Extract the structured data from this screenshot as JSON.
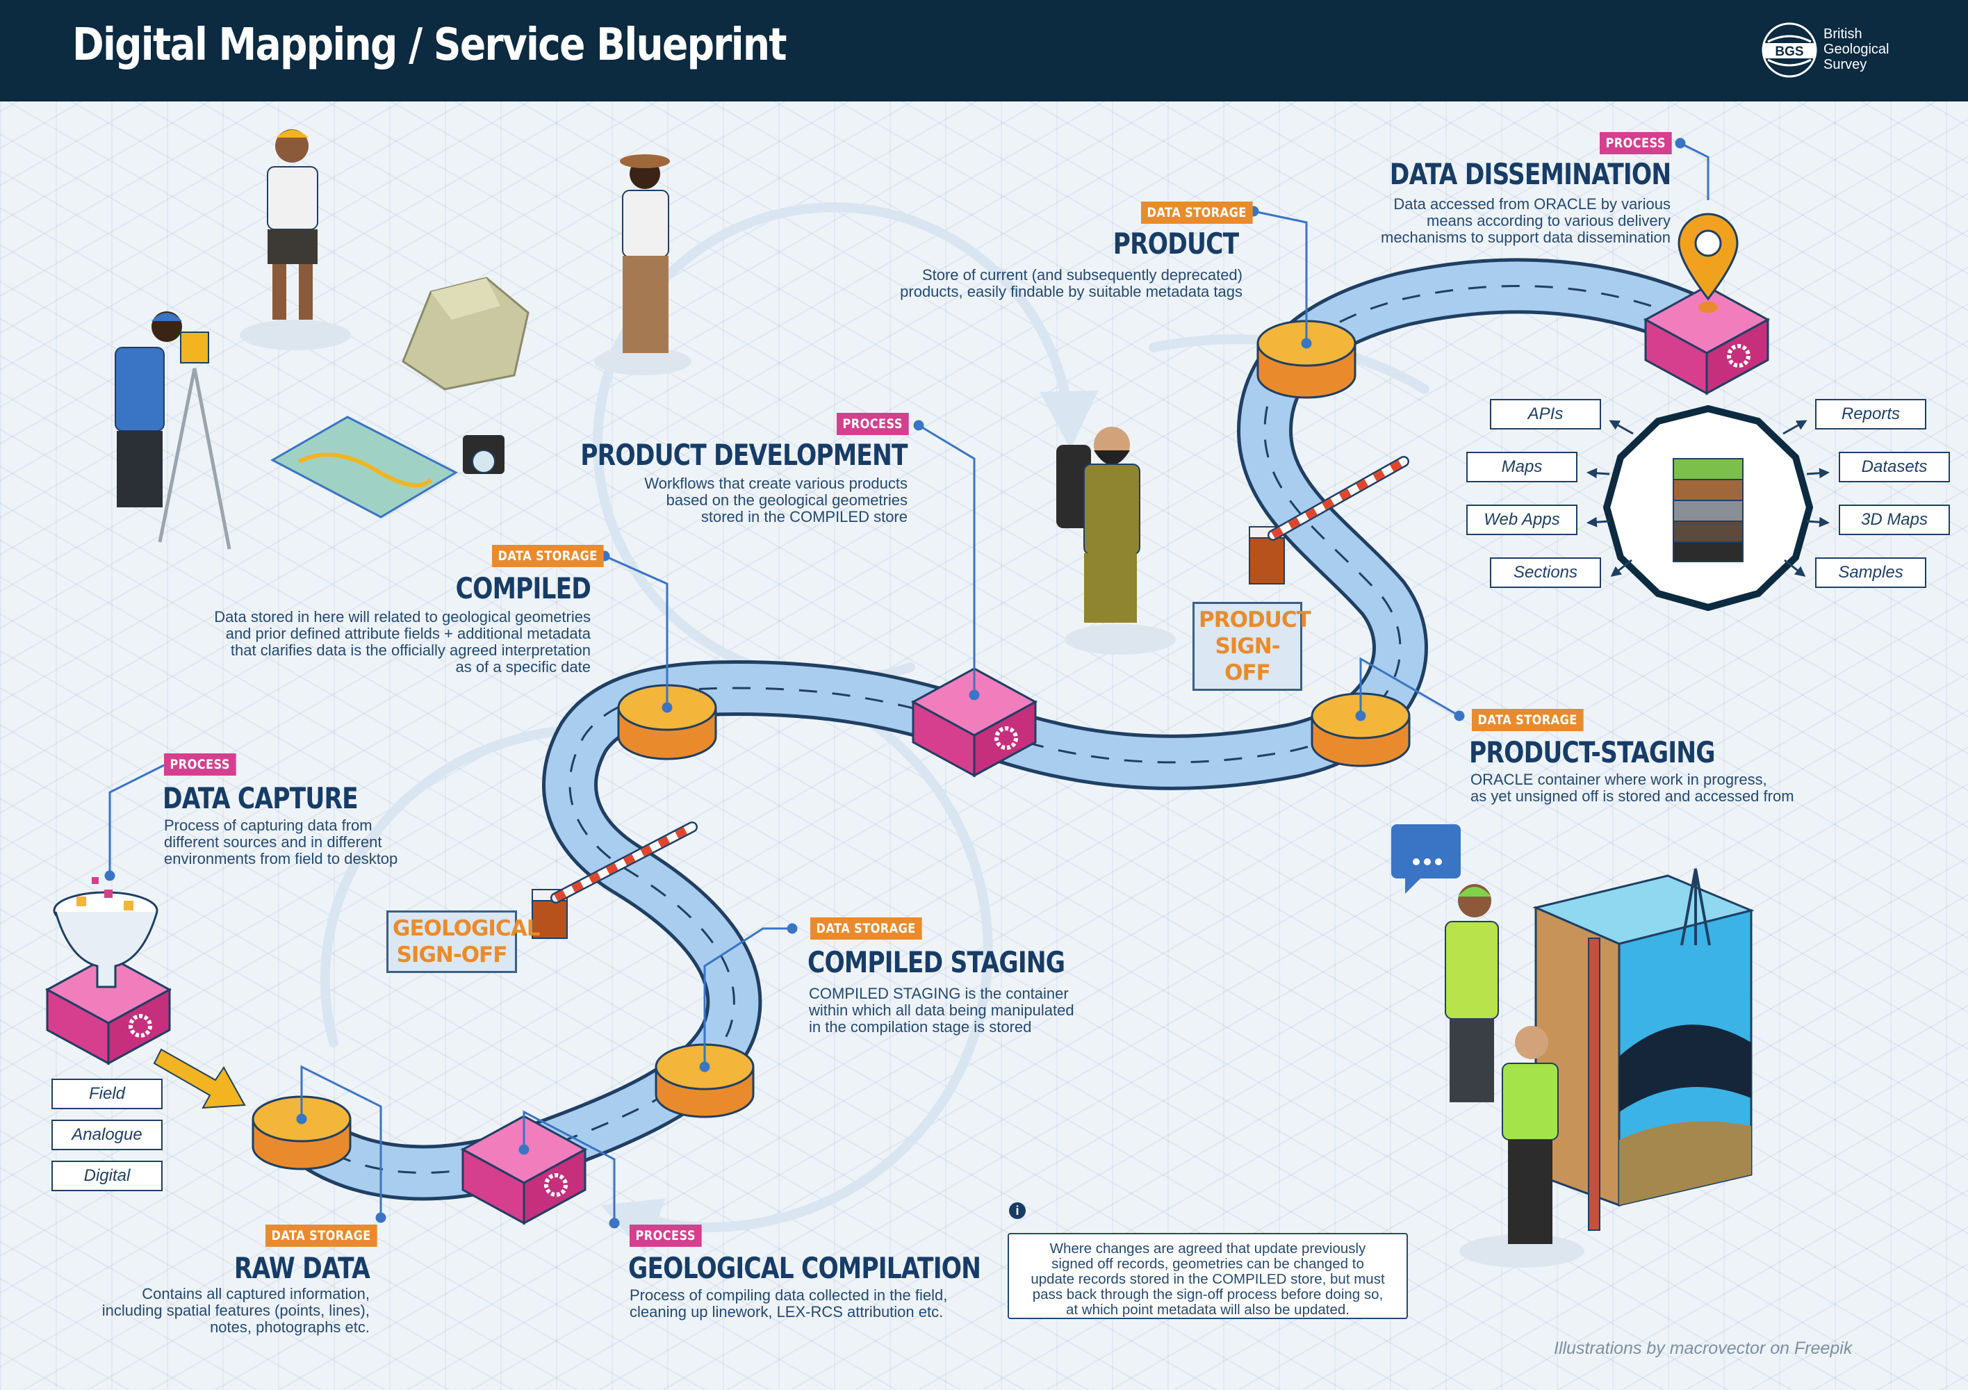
{
  "header": {
    "title": "Digital Mapping / Service Blueprint",
    "logo_mark": "BGS",
    "logo_lines": [
      "British",
      "Geological",
      "Survey"
    ],
    "logo_icon": "bgs-globe-logo"
  },
  "colors": {
    "header_bg": "#0c2a40",
    "process": "#d63f8d",
    "data_storage": "#e98b2d",
    "road": "#a9cdef",
    "title": "#173c66"
  },
  "stages": {
    "data_capture": {
      "tag": "PROCESS",
      "title": "DATA CAPTURE",
      "description": [
        "Process of capturing data from",
        "different sources and in different",
        "environments from field to desktop"
      ]
    },
    "raw_data": {
      "tag": "DATA STORAGE",
      "title": "RAW DATA",
      "description": [
        "Contains all captured information,",
        "including spatial features (points, lines),",
        "notes, photographs etc."
      ]
    },
    "geological_compilation": {
      "tag": "PROCESS",
      "title": "GEOLOGICAL COMPILATION",
      "description": [
        "Process of compiling data collected in the field,",
        "cleaning up linework, LEX-RCS attribution etc."
      ]
    },
    "compiled_staging": {
      "tag": "DATA STORAGE",
      "title": "COMPILED STAGING",
      "description": [
        "COMPILED STAGING is the container",
        "within which all data being manipulated",
        "in the compilation stage is stored"
      ]
    },
    "compiled": {
      "tag": "DATA STORAGE",
      "title": "COMPILED",
      "description": [
        "Data stored in here will related to geological geometries",
        "and prior defined attribute fields + additional metadata",
        "that clarifies data is the officially agreed interpretation",
        "as of a specific date"
      ]
    },
    "product_development": {
      "tag": "PROCESS",
      "title": "PRODUCT DEVELOPMENT",
      "description": [
        "Workflows that create various products",
        "based on the geological geometries",
        "stored in the COMPILED store"
      ]
    },
    "product_staging": {
      "tag": "DATA STORAGE",
      "title": "PRODUCT-STAGING",
      "description": [
        "ORACLE container where work in progress,",
        "as yet unsigned off is stored and accessed from"
      ]
    },
    "product": {
      "tag": "DATA STORAGE",
      "title": "PRODUCT",
      "description": [
        "Store of current (and subsequently deprecated)",
        "products, easily findable by suitable metadata tags"
      ]
    },
    "data_dissemination": {
      "tag": "PROCESS",
      "title": "DATA DISSEMINATION",
      "description": [
        "Data accessed from ORACLE by various",
        "means according to various delivery",
        "mechanisms to support data dissemination"
      ]
    }
  },
  "signoffs": {
    "geological": [
      "GEOLOGICAL",
      "SIGN-OFF"
    ],
    "product": [
      "PRODUCT",
      "SIGN-OFF"
    ]
  },
  "capture_sources": [
    "Field",
    "Analogue",
    "Digital"
  ],
  "outputs": {
    "left": [
      "APIs",
      "Maps",
      "Web Apps",
      "Sections"
    ],
    "right": [
      "Reports",
      "Datasets",
      "3D Maps",
      "Samples"
    ]
  },
  "note": {
    "icon": "info-icon",
    "text": [
      "Where changes are agreed that update previously",
      "signed off records, geometries can be changed to",
      "update records stored in the COMPILED store, but must",
      "pass back through the sign-off process before doing so,",
      "at which point metadata will also be updated."
    ]
  },
  "credit": "Illustrations by macrovector on Freepik"
}
